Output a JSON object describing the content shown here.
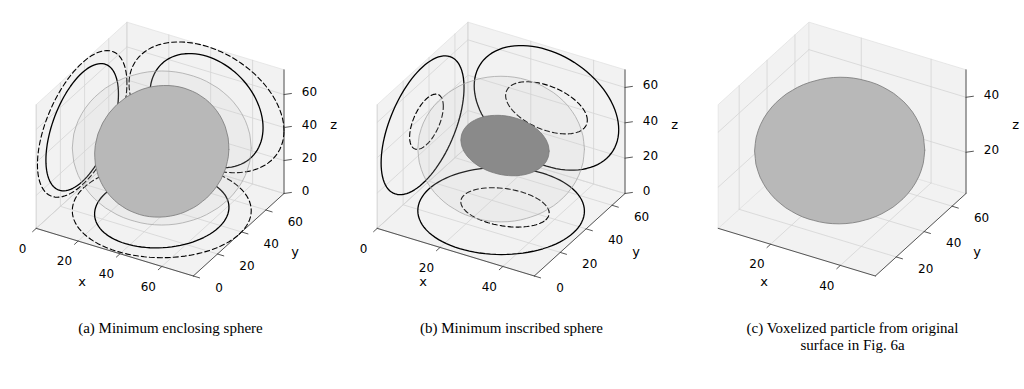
{
  "chart_data": [
    {
      "type": "3d",
      "caption": "(a) Minimum enclosing sphere",
      "xlabel": "x",
      "ylabel": "y",
      "zlabel": "z",
      "xlim": [
        0,
        75
      ],
      "ylim": [
        0,
        75
      ],
      "zlim": [
        0,
        75
      ],
      "xticks": [
        0,
        20,
        40,
        60
      ],
      "yticks": [
        0,
        20,
        40,
        60
      ],
      "zticks": [
        0,
        20,
        40,
        60
      ],
      "grid": true,
      "particle": {
        "center": [
          38,
          38,
          36
        ],
        "semi_axes": [
          27,
          30,
          33
        ],
        "color": "#b8b8b8",
        "line_style": "solid"
      },
      "sphere": {
        "center": [
          38,
          38,
          38
        ],
        "radius": 37,
        "color": "none",
        "line_style": "dashed"
      }
    },
    {
      "type": "3d",
      "caption": "(b) Minimum inscribed sphere",
      "xlabel": "x",
      "ylabel": "y",
      "zlabel": "z",
      "xlim": [
        0,
        50
      ],
      "ylim": [
        0,
        70
      ],
      "zlim": [
        0,
        70
      ],
      "xticks": [
        0,
        20,
        40
      ],
      "yticks": [
        0,
        20,
        40,
        60
      ],
      "zticks": [
        0,
        20,
        40,
        60
      ],
      "grid": true,
      "particle": {
        "center": [
          25,
          35,
          35
        ],
        "semi_axes": [
          23,
          32,
          33
        ],
        "color": "none",
        "line_style": "solid"
      },
      "sphere": {
        "center": [
          25,
          38,
          35
        ],
        "radius": 13,
        "color": "#8a8a8a",
        "line_style": "dashed"
      }
    },
    {
      "type": "3d",
      "caption": "(c) Voxelized particle from original surface in Fig. 6a",
      "xlabel": "x",
      "ylabel": "y",
      "zlabel": "z",
      "xlim": [
        5,
        50
      ],
      "ylim": [
        5,
        70
      ],
      "zlim": [
        5,
        50
      ],
      "xticks": [
        20,
        40
      ],
      "yticks": [
        20,
        40,
        60
      ],
      "zticks": [
        20,
        40
      ],
      "grid": true,
      "particle": {
        "center": [
          27,
          37,
          27
        ],
        "semi_axes": [
          21,
          31,
          21
        ],
        "color": "#b8b8b8"
      }
    }
  ]
}
